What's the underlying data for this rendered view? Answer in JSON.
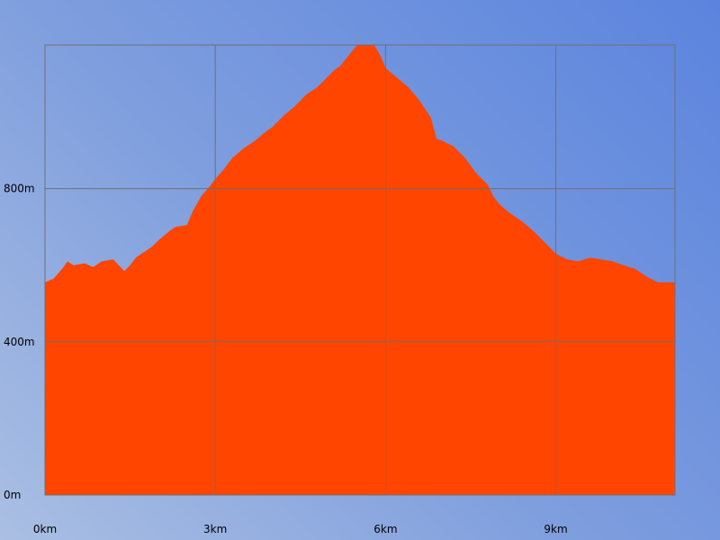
{
  "chart_data": {
    "type": "area",
    "title": "",
    "xlabel": "",
    "ylabel": "",
    "grid": true,
    "colors": {
      "fill": "#ff4500",
      "grid": "#707070"
    },
    "xlim": [
      0,
      11.1
    ],
    "ylim": [
      0,
      1175
    ],
    "x_ticks": [
      {
        "value": 0,
        "label": "0km"
      },
      {
        "value": 3,
        "label": "3km"
      },
      {
        "value": 6,
        "label": "6km"
      },
      {
        "value": 9,
        "label": "9km"
      }
    ],
    "y_ticks": [
      {
        "value": 0,
        "label": "0m"
      },
      {
        "value": 400,
        "label": "400m"
      },
      {
        "value": 800,
        "label": "800m"
      }
    ],
    "series": [
      {
        "x": [
          0,
          0.15,
          0.3,
          0.4,
          0.5,
          0.7,
          0.85,
          1.0,
          1.2,
          1.3,
          1.4,
          1.5,
          1.6,
          1.8,
          1.9,
          2.0,
          2.2,
          2.3,
          2.5,
          2.6,
          2.75,
          2.9,
          3.0,
          3.15,
          3.3,
          3.5,
          3.7,
          3.9,
          4.0,
          4.2,
          4.4,
          4.6,
          4.8,
          4.9,
          5.0,
          5.1,
          5.2,
          5.5,
          5.8,
          5.9,
          6.0,
          6.2,
          6.4,
          6.6,
          6.8,
          6.9,
          7.0,
          7.2,
          7.4,
          7.6,
          7.8,
          7.9,
          8.0,
          8.2,
          8.4,
          8.6,
          8.8,
          9.0,
          9.2,
          9.4,
          9.6,
          9.8,
          10.0,
          10.2,
          10.4,
          10.6,
          10.8,
          11.0,
          11.1
        ],
        "y": [
          555,
          565,
          590,
          610,
          600,
          605,
          595,
          610,
          615,
          600,
          585,
          600,
          620,
          640,
          650,
          665,
          690,
          700,
          705,
          740,
          780,
          805,
          825,
          850,
          880,
          905,
          925,
          950,
          960,
          990,
          1015,
          1045,
          1065,
          1080,
          1095,
          1110,
          1120,
          1175,
          1175,
          1150,
          1115,
          1090,
          1065,
          1030,
          985,
          930,
          925,
          910,
          880,
          840,
          810,
          780,
          760,
          735,
          715,
          690,
          660,
          630,
          615,
          610,
          620,
          615,
          610,
          600,
          590,
          570,
          555,
          555,
          555
        ]
      }
    ]
  }
}
